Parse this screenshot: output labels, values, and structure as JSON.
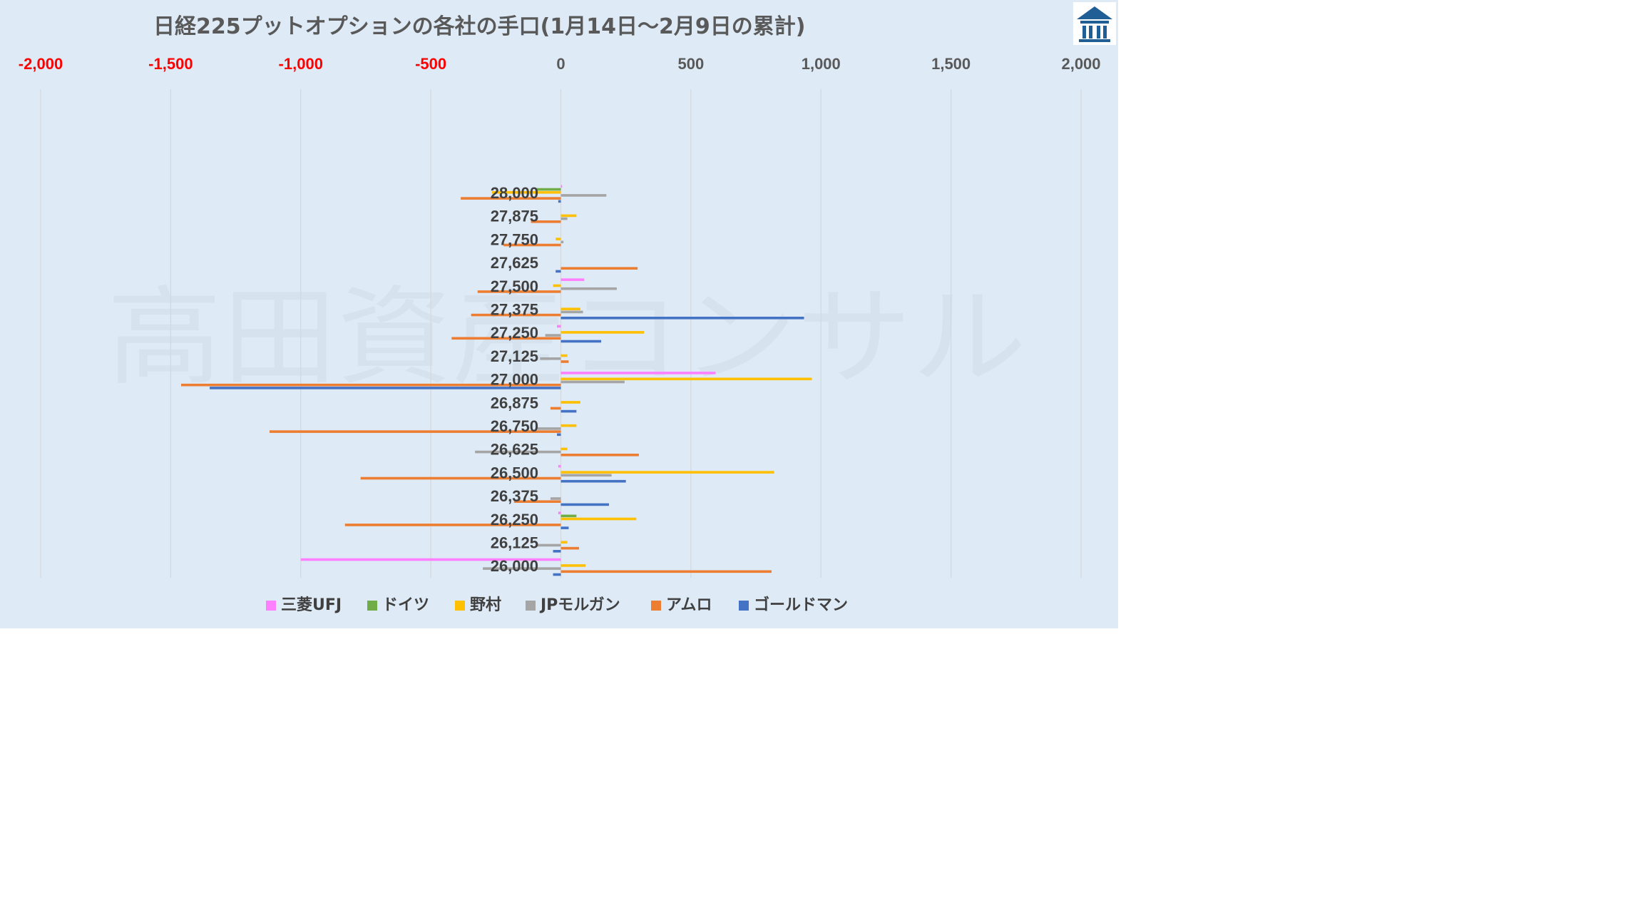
{
  "chart_data": {
    "type": "bar",
    "orientation": "horizontal",
    "title": "日経225プットオプションの各社の手口(1月14日～2月9日の累計)",
    "xlim": [
      -2000,
      2000
    ],
    "x_ticks": [
      "-2,000",
      "-1,500",
      "-1,000",
      "-500",
      "0",
      "500",
      "1,000",
      "1,500",
      "2,000"
    ],
    "x_tick_values": [
      -2000,
      -1500,
      -1000,
      -500,
      0,
      500,
      1000,
      1500,
      2000
    ],
    "negative_tick_color": "#ff0000",
    "positive_tick_color": "#595959",
    "grid": "vertical",
    "legend_position": "bottom",
    "categories": [
      "28,000",
      "27,875",
      "27,750",
      "27,625",
      "27,500",
      "27,375",
      "27,250",
      "27,125",
      "27,000",
      "26,875",
      "26,750",
      "26,625",
      "26,500",
      "26,375",
      "26,250",
      "26,125",
      "26,000"
    ],
    "series": [
      {
        "name": "三菱UFJ",
        "color": "#ff80ff",
        "values": [
          5,
          0,
          0,
          0,
          90,
          0,
          -15,
          0,
          595,
          0,
          0,
          0,
          -10,
          0,
          -10,
          0,
          -1000
        ]
      },
      {
        "name": "ドイツ",
        "color": "#70ad47",
        "values": [
          -95,
          0,
          0,
          0,
          0,
          0,
          0,
          0,
          0,
          0,
          0,
          0,
          0,
          0,
          60,
          0,
          0
        ]
      },
      {
        "name": "野村",
        "color": "#ffc000",
        "values": [
          -265,
          60,
          -20,
          0,
          -30,
          75,
          320,
          25,
          965,
          75,
          60,
          25,
          820,
          0,
          290,
          25,
          95
        ]
      },
      {
        "name": "JPモルガン",
        "color": "#a5a5a5",
        "values": [
          175,
          25,
          10,
          0,
          215,
          85,
          -60,
          -80,
          245,
          0,
          -90,
          -330,
          195,
          -40,
          0,
          -90,
          -300
        ]
      },
      {
        "name": "アムロ",
        "color": "#ed7d31",
        "values": [
          -385,
          -115,
          -220,
          295,
          -320,
          -345,
          -420,
          30,
          -1460,
          -40,
          -1120,
          300,
          -770,
          -180,
          -830,
          70,
          810
        ]
      },
      {
        "name": "ゴールドマン",
        "color": "#4472c4",
        "values": [
          -10,
          0,
          0,
          -20,
          0,
          935,
          155,
          0,
          -1350,
          60,
          -15,
          0,
          250,
          185,
          30,
          -30,
          -30
        ]
      }
    ]
  },
  "watermark_text": "高田資産コンサル",
  "logo": {
    "name": "building-logo",
    "color": "#1f5f96"
  }
}
